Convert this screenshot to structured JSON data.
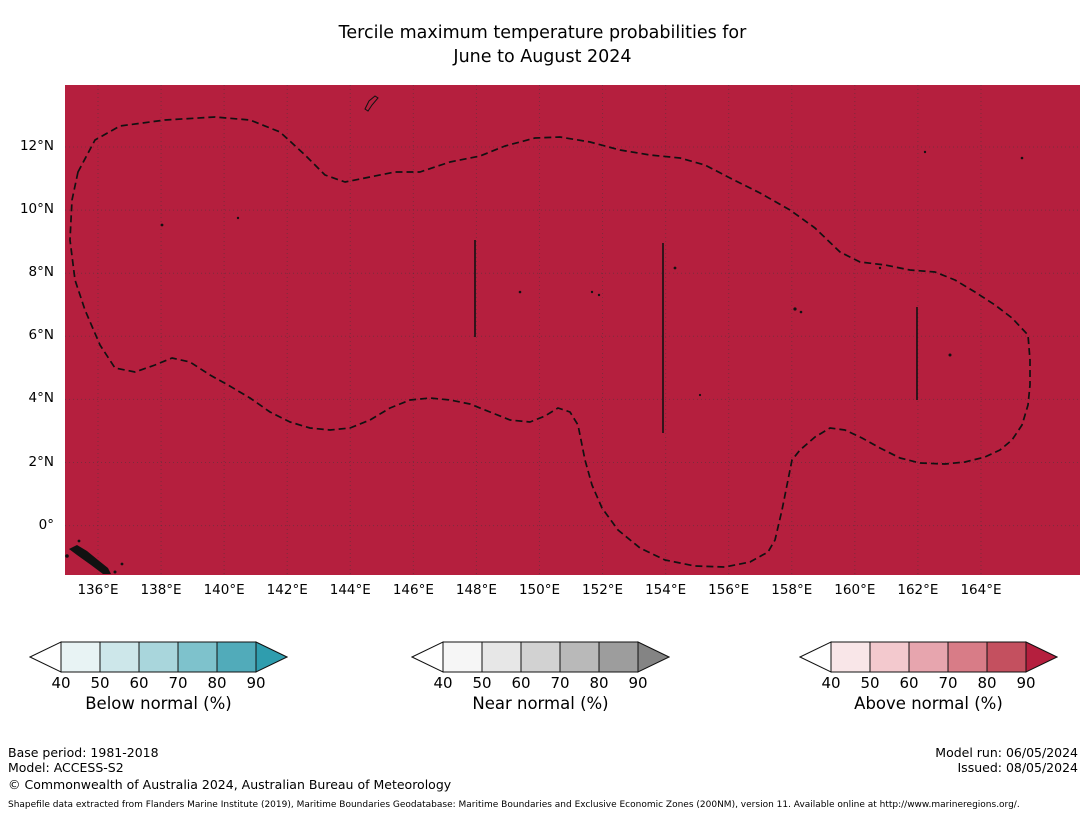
{
  "title": {
    "line1": "Tercile maximum temperature probabilities for",
    "line2": "June to August 2024"
  },
  "map": {
    "fill_color": "#b51f3e",
    "lat_labels": [
      "12°N",
      "10°N",
      "8°N",
      "6°N",
      "4°N",
      "2°N",
      "0°"
    ],
    "lon_labels": [
      "136°E",
      "138°E",
      "140°E",
      "142°E",
      "144°E",
      "146°E",
      "148°E",
      "150°E",
      "152°E",
      "154°E",
      "156°E",
      "158°E",
      "160°E",
      "162°E",
      "164°E"
    ]
  },
  "legends": [
    {
      "label": "Below normal (%)",
      "ticks": [
        "40",
        "50",
        "60",
        "70",
        "80",
        "90"
      ],
      "segment_colors": [
        "#e8f3f4",
        "#cde7ea",
        "#a9d6dc",
        "#7ec2cc",
        "#51abba"
      ],
      "arrow_left_color": "#ffffff",
      "arrow_right_color": "#2f9dae"
    },
    {
      "label": "Near normal (%)",
      "ticks": [
        "40",
        "50",
        "60",
        "70",
        "80",
        "90"
      ],
      "segment_colors": [
        "#f6f6f6",
        "#e7e7e7",
        "#d2d2d2",
        "#b9b9b9",
        "#9d9d9d"
      ],
      "arrow_left_color": "#ffffff",
      "arrow_right_color": "#848484"
    },
    {
      "label": "Above normal (%)",
      "ticks": [
        "40",
        "50",
        "60",
        "70",
        "80",
        "90"
      ],
      "segment_colors": [
        "#f9e6e8",
        "#f3c9ce",
        "#e7a5ae",
        "#d87c87",
        "#c4505f"
      ],
      "arrow_left_color": "#ffffff",
      "arrow_right_color": "#b51f3e"
    }
  ],
  "footer": {
    "base_period": "Base period: 1981-2018",
    "model": "Model: ACCESS-S2",
    "copyright": "© Commonwealth of Australia 2024, Australian Bureau of Meteorology",
    "model_run": "Model run: 06/05/2024",
    "issued": "Issued: 08/05/2024",
    "shapefile_note": "Shapefile data extracted from Flanders Marine Institute (2019), Maritime Boundaries Geodatabase: Maritime Boundaries and Exclusive Economic Zones (200NM), version 11. Available online at http://www.marineregions.org/."
  },
  "chart_data": {
    "type": "heatmap",
    "title": "Tercile maximum temperature probabilities for June to August 2024",
    "variable": "Tercile maximum temperature probability",
    "period": "June to August 2024",
    "x_ticks": [
      "136°E",
      "138°E",
      "140°E",
      "142°E",
      "144°E",
      "146°E",
      "148°E",
      "150°E",
      "152°E",
      "154°E",
      "156°E",
      "158°E",
      "160°E",
      "162°E",
      "164°E"
    ],
    "y_ticks": [
      "0°",
      "2°N",
      "4°N",
      "6°N",
      "8°N",
      "10°N",
      "12°N"
    ],
    "colorbar_ticks": [
      40,
      50,
      60,
      70,
      80,
      90
    ],
    "categories": [
      "Below normal (%)",
      "Near normal (%)",
      "Above normal (%)"
    ],
    "values_summary": "Entire mapped ocean region is shaded in the darkest 'Above normal' class (> 90%); dashed lines mark maritime EEZ boundaries",
    "grid": true,
    "legend_position": "bottom"
  }
}
